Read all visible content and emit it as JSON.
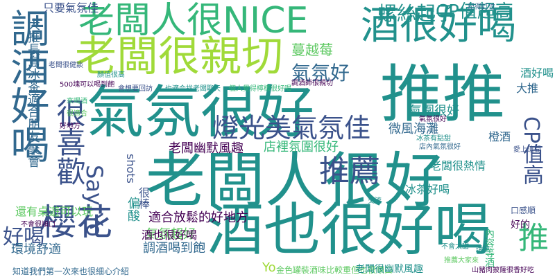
{
  "palette": {
    "dark_purple": "#440154",
    "indigo": "#3b528b",
    "blue": "#31688e",
    "teal": "#21918c",
    "sea_green": "#35b779",
    "green": "#5ec962",
    "lime": "#a0da39",
    "yellow": "#fde725"
  },
  "words": [
    {
      "text": "推推",
      "weight": 1.0,
      "color": "#21918c"
    },
    {
      "text": "老闆人很好",
      "weight": 0.97,
      "color": "#21918c"
    },
    {
      "text": "氣氛很好",
      "weight": 0.93,
      "color": "#21918c"
    },
    {
      "text": "酒也很好喝",
      "weight": 0.9,
      "color": "#21918c"
    },
    {
      "text": "老闆很親切",
      "weight": 0.8,
      "color": "#a0da39"
    },
    {
      "text": "調酒好喝",
      "weight": 0.78,
      "color": "#31688e"
    },
    {
      "text": "老闆人很NICE",
      "weight": 0.75,
      "color": "#35b779"
    },
    {
      "text": "酒很好喝",
      "weight": 0.73,
      "color": "#21918c"
    },
    {
      "text": "櫻花",
      "weight": 0.66,
      "color": "#3b528b"
    },
    {
      "text": "推薦",
      "weight": 0.6,
      "color": "#3b528b"
    },
    {
      "text": "很喜歡",
      "weight": 0.58,
      "color": "#3b528b"
    },
    {
      "text": "燈光美氣氛佳",
      "weight": 0.55,
      "color": "#3b528b"
    },
    {
      "text": "推",
      "weight": 0.55,
      "color": "#35b779"
    },
    {
      "text": "CP值高",
      "weight": 0.48,
      "color": "#3b528b"
    },
    {
      "text": "Say Yo",
      "weight": 0.45,
      "color": "#3b528b"
    },
    {
      "text": "好喝",
      "weight": 0.45,
      "color": "#3b528b"
    },
    {
      "text": "CP值超高",
      "weight": 0.4,
      "color": "#21918c"
    },
    {
      "text": "螺絲起子",
      "weight": 0.38,
      "color": "#21918c"
    },
    {
      "text": "氣氛好",
      "weight": 0.38,
      "color": "#31688e"
    },
    {
      "text": "老闆幽默風趣",
      "weight": 0.35,
      "color": "#440154"
    },
    {
      "text": "大推長島冰茶適合朋友聚會",
      "weight": 0.32,
      "color": "#31688e"
    },
    {
      "text": "只要氣氛佳",
      "weight": 0.28,
      "color": "#3b528b"
    },
    {
      "text": "蔓越莓",
      "weight": 0.28,
      "color": "#5ec962"
    },
    {
      "text": "氣圍很好",
      "weight": 0.28,
      "color": "#21918c"
    },
    {
      "text": "微風海灘",
      "weight": 0.3,
      "color": "#31688e"
    },
    {
      "text": "店裡氛圍很好",
      "weight": 0.3,
      "color": "#35b779"
    },
    {
      "text": "適合放鬆的好地方",
      "weight": 0.32,
      "color": "#440154"
    },
    {
      "text": "還有桌遊可以玩",
      "weight": 0.3,
      "color": "#5ec962"
    },
    {
      "text": "環境舒適",
      "weight": 0.3,
      "color": "#31688e"
    },
    {
      "text": "調酒喝到飽",
      "weight": 0.3,
      "color": "#31688e"
    },
    {
      "text": "氣氛超好",
      "weight": 0.28,
      "color": "#5ec962"
    },
    {
      "text": "酒也很好喝",
      "weight": 0.28,
      "color": "#440154"
    },
    {
      "text": "老闆很熱情",
      "weight": 0.26,
      "color": "#21918c"
    },
    {
      "text": "偏酸",
      "weight": 0.28,
      "color": "#21918c"
    },
    {
      "text": "很棒",
      "weight": 0.28,
      "color": "#3b528b"
    },
    {
      "text": "shots",
      "weight": 0.26,
      "color": "#3b528b"
    },
    {
      "text": "大推",
      "weight": 0.28,
      "color": "#31688e"
    },
    {
      "text": "酒好喝",
      "weight": 0.26,
      "color": "#21918c"
    },
    {
      "text": "橙酒",
      "weight": 0.26,
      "color": "#31688e"
    },
    {
      "text": "冰茶好喝",
      "weight": 0.2,
      "color": "#21918c"
    },
    {
      "text": "Yo",
      "weight": 0.3,
      "color": "#a0da39"
    },
    {
      "text": "金色罐裝酒味比較重但也很順口",
      "weight": 0.2,
      "color": "#5ec962"
    },
    {
      "text": "老闆很幽默風趣",
      "weight": 0.2,
      "color": "#21918c"
    },
    {
      "text": "口感順",
      "weight": 0.18,
      "color": "#3b528b"
    },
    {
      "text": "內容等酒",
      "weight": 0.25,
      "color": "#35b779"
    },
    {
      "text": "好的",
      "weight": 0.2,
      "color": "#440154"
    },
    {
      "text": "知道我們第一次來也很細心介紹",
      "weight": 0.2,
      "color": "#31688e"
    },
    {
      "text": "不會很順口",
      "weight": 0.14,
      "color": "#440154"
    },
    {
      "text": "交流",
      "weight": 0.12,
      "color": "#21918c"
    },
    {
      "text": "記得訂位",
      "weight": 0.12,
      "color": "#31688e"
    },
    {
      "text": "山豬肉披薩很香好吃",
      "weight": 0.14,
      "color": "#440154"
    },
    {
      "text": "不會太甜",
      "weight": 0.14,
      "color": "#21918c"
    },
    {
      "text": "推薦大家來",
      "weight": 0.14,
      "color": "#5ec962"
    },
    {
      "text": "環境",
      "weight": 0.12,
      "color": "#21918c"
    },
    {
      "text": "會想要回訪",
      "weight": 0.14,
      "color": "#3b528b"
    },
    {
      "text": "也適合找老闆聊天",
      "weight": 0.14,
      "color": "#21918c"
    },
    {
      "text": "個人覺得檸檬很好喝",
      "weight": 0.12,
      "color": "#35b779"
    },
    {
      "text": "調酒師很親切",
      "weight": 0.12,
      "color": "#440154"
    },
    {
      "text": "冰茶有點甜",
      "weight": 0.12,
      "color": "#21918c"
    },
    {
      "text": "氣氛很好",
      "weight": 0.14,
      "color": "#440154"
    },
    {
      "text": "店內氣氛很好",
      "weight": 0.12,
      "color": "#31688e"
    },
    {
      "text": "愛上這間",
      "weight": 0.12,
      "color": "#3b528b"
    },
    {
      "text": "500塊可以喝到飽",
      "weight": 0.12,
      "color": "#440154"
    },
    {
      "text": "老闆很健談",
      "weight": 0.12,
      "color": "#3b528b"
    },
    {
      "text": "顏值很高",
      "weight": 0.12,
      "color": "#21918c"
    },
    {
      "text": "來喝酒",
      "weight": 0.12,
      "color": "#35b779"
    },
    {
      "text": "很適合",
      "weight": 0.12,
      "color": "#5ec962"
    },
    {
      "text": "好地方",
      "weight": 0.12,
      "color": "#440154"
    }
  ]
}
